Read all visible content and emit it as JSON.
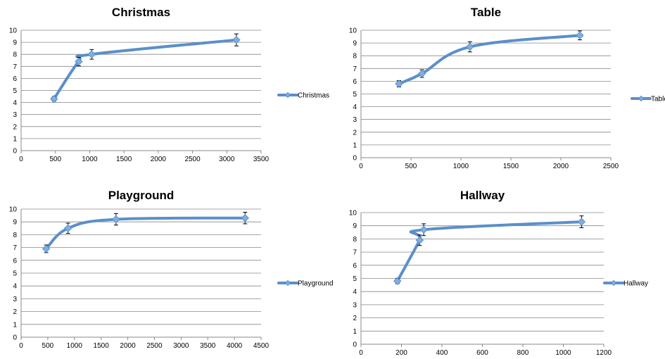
{
  "chart_data": [
    {
      "type": "line",
      "title": "Christmas",
      "x": [
        480,
        840,
        1030,
        3140
      ],
      "series": [
        {
          "name": "Christmas",
          "values": [
            4.3,
            7.4,
            8.0,
            9.2
          ],
          "error": [
            0.2,
            0.35,
            0.4,
            0.5
          ]
        }
      ],
      "xlim": [
        0,
        3500
      ],
      "xticks": [
        0,
        500,
        1000,
        1500,
        2000,
        2500,
        3000,
        3500
      ],
      "ylim": [
        0,
        10
      ],
      "yticks": [
        0,
        1,
        2,
        3,
        4,
        5,
        6,
        7,
        8,
        9,
        10
      ],
      "grid": true,
      "legend": "right",
      "color": "#5B8FC9"
    },
    {
      "type": "line",
      "title": "Table",
      "x": [
        380,
        610,
        1090,
        2190
      ],
      "series": [
        {
          "name": "Table",
          "values": [
            5.8,
            6.6,
            8.7,
            9.6
          ],
          "error": [
            0.25,
            0.3,
            0.4,
            0.35
          ]
        }
      ],
      "xlim": [
        0,
        2500
      ],
      "xticks": [
        0,
        500,
        1000,
        1500,
        2000,
        2500
      ],
      "ylim": [
        0,
        10
      ],
      "yticks": [
        0,
        1,
        2,
        3,
        4,
        5,
        6,
        7,
        8,
        9,
        10
      ],
      "grid": true,
      "legend": "right",
      "color": "#5B8FC9"
    },
    {
      "type": "line",
      "title": "Playground",
      "x": [
        470,
        880,
        1780,
        4200
      ],
      "series": [
        {
          "name": "Playground",
          "values": [
            6.9,
            8.5,
            9.2,
            9.3
          ],
          "error": [
            0.3,
            0.4,
            0.45,
            0.45
          ]
        }
      ],
      "xlim": [
        0,
        4500
      ],
      "xticks": [
        0,
        500,
        1000,
        1500,
        2000,
        2500,
        3000,
        3500,
        4000,
        4500
      ],
      "ylim": [
        0,
        10
      ],
      "yticks": [
        0,
        1,
        2,
        3,
        4,
        5,
        6,
        7,
        8,
        9,
        10
      ],
      "grid": true,
      "legend": "right",
      "color": "#5B8FC9"
    },
    {
      "type": "line",
      "title": "Hallway",
      "x": [
        180,
        290,
        310,
        1090
      ],
      "series": [
        {
          "name": "Hallway",
          "values": [
            4.8,
            7.9,
            8.7,
            9.3
          ],
          "error": [
            0.2,
            0.4,
            0.45,
            0.45
          ]
        }
      ],
      "xlim": [
        0,
        1200
      ],
      "xticks": [
        0,
        200,
        400,
        600,
        800,
        1000,
        1200
      ],
      "ylim": [
        0,
        10
      ],
      "yticks": [
        0,
        1,
        2,
        3,
        4,
        5,
        6,
        7,
        8,
        9,
        10
      ],
      "grid": true,
      "legend": "right",
      "color": "#5B8FC9"
    }
  ]
}
